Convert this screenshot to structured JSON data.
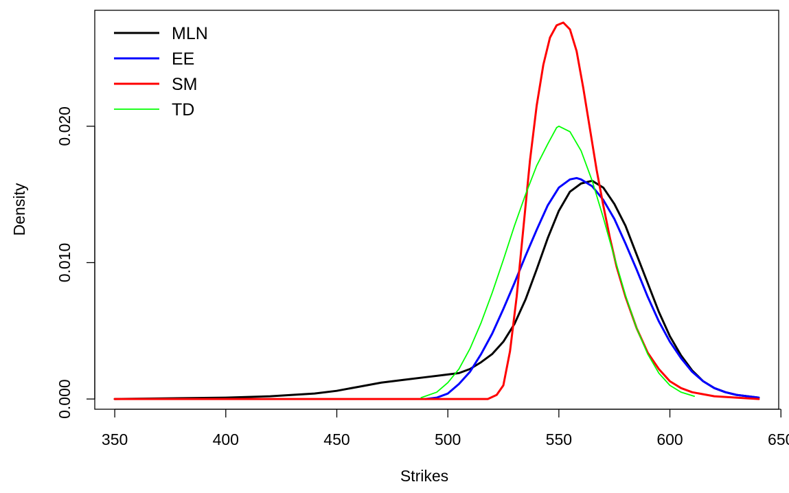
{
  "chart_data": {
    "type": "line",
    "title": "",
    "xlabel": "Strikes",
    "ylabel": "Density",
    "xlim": [
      341,
      649
    ],
    "ylim": [
      -0.00075,
      0.0285
    ],
    "x_ticks": [
      350,
      400,
      450,
      500,
      550,
      600,
      650
    ],
    "x_tick_labels": [
      "350",
      "400",
      "450",
      "500",
      "550",
      "600",
      "650"
    ],
    "y_ticks": [
      0.0,
      0.01,
      0.02
    ],
    "y_tick_labels": [
      "0.000",
      "0.010",
      "0.020"
    ],
    "grid": false,
    "legend_position": "top-left",
    "series": [
      {
        "name": "MLN",
        "color": "#000000",
        "x": [
          350,
          400,
          420,
          440,
          450,
          460,
          470,
          480,
          490,
          500,
          505,
          510,
          515,
          520,
          525,
          530,
          535,
          540,
          545,
          550,
          555,
          560,
          565,
          570,
          575,
          580,
          585,
          590,
          595,
          600,
          605,
          610,
          615,
          620,
          625,
          630,
          635,
          640
        ],
        "y": [
          0.0,
          0.0001,
          0.0002,
          0.0004,
          0.0006,
          0.0009,
          0.0012,
          0.0014,
          0.0016,
          0.0018,
          0.0019,
          0.0022,
          0.0027,
          0.0033,
          0.0042,
          0.0055,
          0.0073,
          0.0095,
          0.0118,
          0.0138,
          0.0152,
          0.0158,
          0.016,
          0.0155,
          0.0143,
          0.0127,
          0.0106,
          0.0085,
          0.0064,
          0.0046,
          0.0032,
          0.0021,
          0.0013,
          0.0008,
          0.0005,
          0.0003,
          0.0002,
          0.0001
        ]
      },
      {
        "name": "EE",
        "color": "#0000ff",
        "x": [
          490,
          495,
          500,
          505,
          510,
          515,
          520,
          525,
          530,
          535,
          540,
          545,
          550,
          555,
          558,
          560,
          565,
          570,
          575,
          580,
          585,
          590,
          595,
          600,
          605,
          610,
          615,
          620,
          625,
          630,
          635,
          640
        ],
        "y": [
          0.0,
          0.0001,
          0.0004,
          0.0011,
          0.002,
          0.0033,
          0.0048,
          0.0066,
          0.0085,
          0.0105,
          0.0124,
          0.0142,
          0.0155,
          0.0161,
          0.0162,
          0.0161,
          0.0156,
          0.0146,
          0.0132,
          0.0114,
          0.0095,
          0.0075,
          0.0057,
          0.0042,
          0.003,
          0.002,
          0.0013,
          0.0008,
          0.0005,
          0.0003,
          0.0002,
          0.0001
        ]
      },
      {
        "name": "SM",
        "color": "#ff0000",
        "x": [
          350,
          400,
          450,
          500,
          518,
          522,
          525,
          528,
          531,
          534,
          537,
          540,
          543,
          546,
          549,
          552,
          555,
          558,
          561,
          564,
          567,
          570,
          573,
          576,
          580,
          585,
          590,
          595,
          600,
          605,
          610,
          620,
          630,
          640
        ],
        "y": [
          0.0,
          0.0,
          0.0,
          0.0,
          0.0,
          0.0003,
          0.001,
          0.0035,
          0.0075,
          0.0125,
          0.0175,
          0.0215,
          0.0245,
          0.0265,
          0.0274,
          0.0276,
          0.0271,
          0.0255,
          0.0228,
          0.0198,
          0.0168,
          0.0142,
          0.0118,
          0.0097,
          0.0075,
          0.0052,
          0.0034,
          0.0022,
          0.0013,
          0.0008,
          0.0005,
          0.0002,
          0.0001,
          0.0
        ]
      },
      {
        "name": "TD",
        "color": "#00ff00",
        "x": [
          488,
          495,
          500,
          505,
          510,
          515,
          520,
          525,
          530,
          535,
          540,
          545,
          549,
          550,
          555,
          560,
          565,
          570,
          575,
          580,
          585,
          590,
          595,
          600,
          605,
          611
        ],
        "y": [
          0.0001,
          0.0005,
          0.0012,
          0.0022,
          0.0037,
          0.0056,
          0.0078,
          0.0102,
          0.0127,
          0.015,
          0.0171,
          0.0187,
          0.0199,
          0.02,
          0.0196,
          0.0182,
          0.016,
          0.0133,
          0.0104,
          0.0076,
          0.0052,
          0.0033,
          0.0019,
          0.001,
          0.0005,
          0.0002
        ]
      }
    ]
  }
}
